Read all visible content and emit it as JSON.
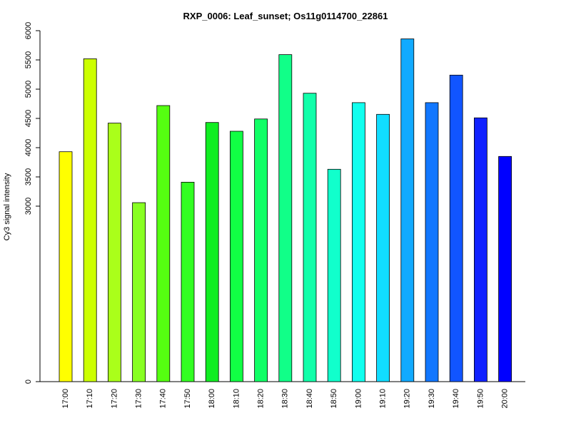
{
  "chart_data": {
    "type": "bar",
    "title": "RXP_0006: Leaf_sunset; Os11g0114700_22861",
    "xlabel": "",
    "ylabel": "Cy3 signal intensity",
    "ylim": [
      0,
      6000
    ],
    "y_ticks": [
      0,
      3000,
      3500,
      4000,
      4500,
      5000,
      5500,
      6000
    ],
    "y_tick_labels": [
      "0",
      "3000",
      "3500",
      "4000",
      "4500",
      "5000",
      "5500",
      "6000"
    ],
    "grid": false,
    "categories": [
      "17:00",
      "17:10",
      "17:20",
      "17:30",
      "17:40",
      "17:50",
      "18:00",
      "18:10",
      "18:20",
      "18:30",
      "18:40",
      "18:50",
      "19:00",
      "19:10",
      "19:20",
      "19:30",
      "19:40",
      "19:50",
      "20:00"
    ],
    "values": [
      3930,
      5520,
      4420,
      3060,
      4720,
      3410,
      4430,
      4280,
      4490,
      5590,
      4930,
      3630,
      4770,
      4570,
      5860,
      4770,
      5240,
      4510,
      3850
    ],
    "colors": [
      "#FFFF00",
      "#CCFF00",
      "#AAFF1A",
      "#88FF22",
      "#55FF11",
      "#33FF22",
      "#11EE22",
      "#11FF44",
      "#11FF66",
      "#11FF88",
      "#11FFAA",
      "#11FFCC",
      "#11FFEE",
      "#11DDFF",
      "#11AAFF",
      "#1177FF",
      "#1155FF",
      "#1122FF",
      "#0000FF"
    ]
  }
}
